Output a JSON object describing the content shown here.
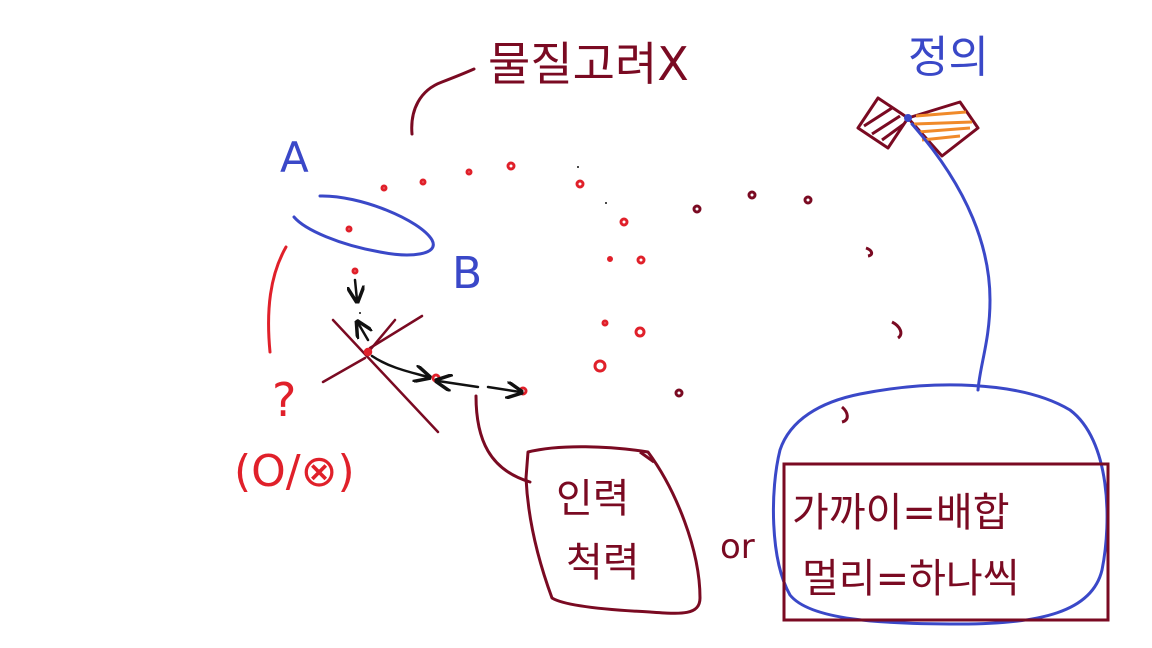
{
  "colors": {
    "dark_red": "#7a0a22",
    "red": "#e0202a",
    "blue": "#3a48c8",
    "orange": "#f08a2a",
    "black": "#111111",
    "background": "#ffffff"
  },
  "labels": {
    "top_note": "물질고려X",
    "label_a": "A",
    "label_b": "B",
    "question_mark": "?",
    "o_x_choice": "(O/⊗)",
    "top_right_word": "정의",
    "force_line1": "인력",
    "force_line2": "척력",
    "or_word": "or",
    "rule_line1": "가까이=배합",
    "rule_line2": "멀리=하나씩"
  },
  "icons": {
    "bowtie": "bowtie-sketch-icon"
  }
}
